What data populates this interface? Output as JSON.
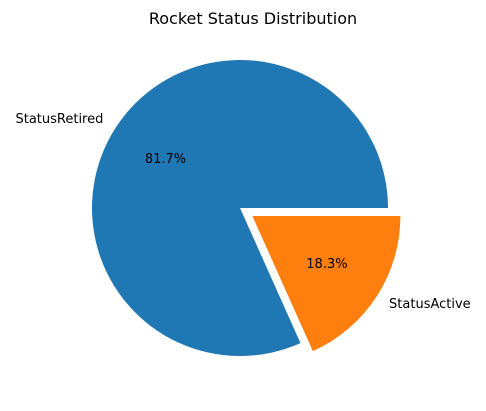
{
  "chart_data": {
    "type": "pie",
    "title": "Rocket Status Distribution",
    "slices": [
      {
        "label": "StatusRetired",
        "value": 81.7,
        "pct_label": "81.7%",
        "color": "#1f77b4",
        "explode": 0
      },
      {
        "label": "StatusActive",
        "value": 18.3,
        "pct_label": "18.3%",
        "color": "#ff7f0e",
        "explode": 0.1
      }
    ],
    "start_angle": 0,
    "direction": "counterclockwise",
    "legend": false
  }
}
